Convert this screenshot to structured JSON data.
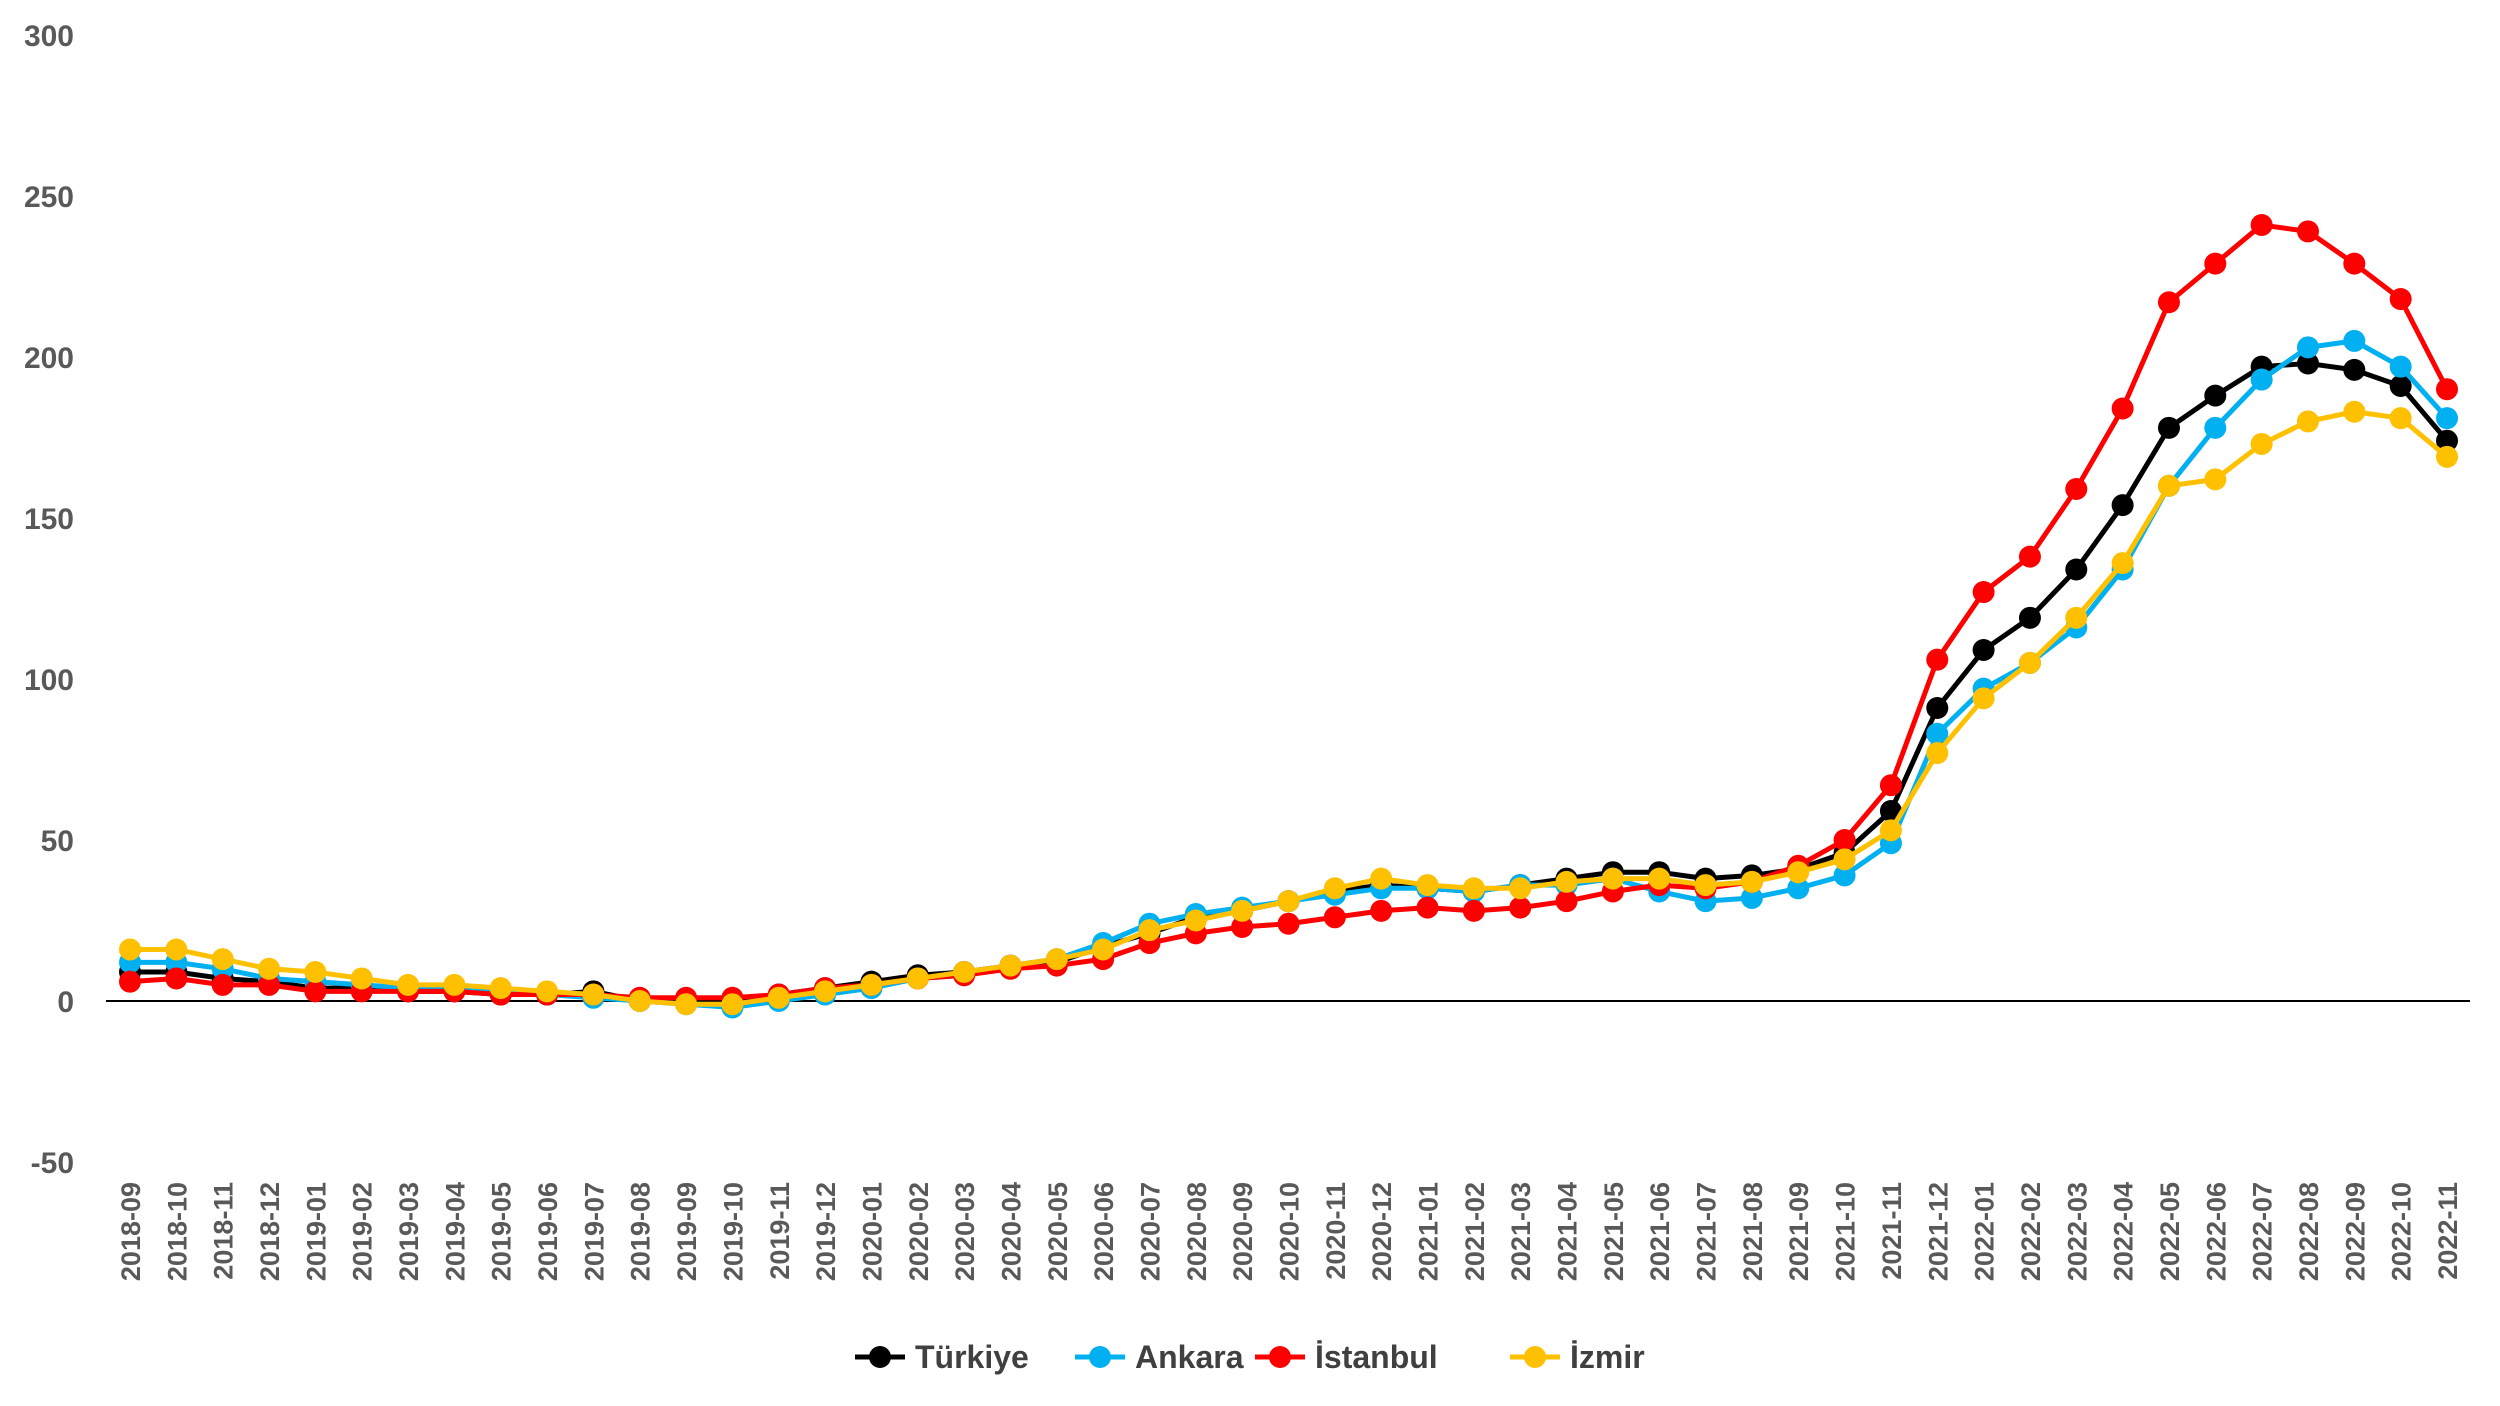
{
  "chart_data": {
    "type": "line",
    "title": "",
    "xlabel": "",
    "ylabel": "",
    "ylim": [
      -50,
      300
    ],
    "yticks": [
      -50,
      0,
      50,
      100,
      150,
      200,
      250,
      300
    ],
    "grid": false,
    "legend_position": "bottom",
    "categories": [
      "2018-09",
      "2018-10",
      "2018-11",
      "2018-12",
      "2019-01",
      "2019-02",
      "2019-03",
      "2019-04",
      "2019-05",
      "2019-06",
      "2019-07",
      "2019-08",
      "2019-09",
      "2019-10",
      "2019-11",
      "2019-12",
      "2020-01",
      "2020-02",
      "2020-03",
      "2020-04",
      "2020-05",
      "2020-06",
      "2020-07",
      "2020-08",
      "2020-09",
      "2020-10",
      "2020-11",
      "2020-12",
      "2021-01",
      "2021-02",
      "2021-03",
      "2021-04",
      "2021-05",
      "2021-06",
      "2021-07",
      "2021-08",
      "2021-09",
      "2021-10",
      "2021-11",
      "2021-12",
      "2022-01",
      "2022-02",
      "2022-03",
      "2022-04",
      "2022-05",
      "2022-06",
      "2022-07",
      "2022-08",
      "2022-09",
      "2022-10",
      "2022-11"
    ],
    "series": [
      {
        "name": "Türkiye",
        "color": "#000000",
        "values": [
          9,
          9,
          7,
          6,
          4,
          4,
          3,
          3,
          2,
          2,
          3,
          0,
          0,
          -1,
          2,
          4,
          6,
          8,
          9,
          11,
          12,
          17,
          21,
          26,
          28,
          31,
          34,
          36,
          35,
          34,
          36,
          38,
          40,
          40,
          38,
          39,
          41,
          46,
          59,
          91,
          109,
          119,
          134,
          154,
          178,
          188,
          197,
          198,
          196,
          191,
          174
        ]
      },
      {
        "name": "Ankara",
        "color": "#00B0F0",
        "values": [
          12,
          12,
          10,
          7,
          6,
          5,
          4,
          4,
          3,
          2,
          1,
          0,
          -1,
          -2,
          0,
          2,
          4,
          7,
          8,
          11,
          13,
          18,
          24,
          27,
          29,
          31,
          33,
          35,
          35,
          34,
          36,
          36,
          38,
          34,
          31,
          32,
          35,
          39,
          49,
          83,
          97,
          105,
          116,
          134,
          160,
          178,
          193,
          203,
          205,
          197,
          181
        ]
      },
      {
        "name": "İstanbul",
        "color": "#FF0000",
        "values": [
          6,
          7,
          5,
          5,
          3,
          3,
          3,
          3,
          2,
          2,
          2,
          1,
          1,
          1,
          2,
          4,
          5,
          7,
          8,
          10,
          11,
          13,
          18,
          21,
          23,
          24,
          26,
          28,
          29,
          28,
          29,
          31,
          34,
          36,
          35,
          37,
          42,
          50,
          67,
          106,
          127,
          138,
          159,
          184,
          217,
          229,
          241,
          239,
          229,
          218,
          190
        ]
      },
      {
        "name": "İzmir",
        "color": "#FFC000",
        "values": [
          16,
          16,
          13,
          10,
          9,
          7,
          5,
          5,
          4,
          3,
          2,
          0,
          -1,
          -1,
          1,
          3,
          5,
          7,
          9,
          11,
          13,
          16,
          22,
          25,
          28,
          31,
          35,
          38,
          36,
          35,
          35,
          37,
          38,
          38,
          36,
          37,
          40,
          44,
          53,
          77,
          94,
          105,
          119,
          136,
          160,
          162,
          173,
          180,
          183,
          181,
          169
        ]
      }
    ]
  }
}
